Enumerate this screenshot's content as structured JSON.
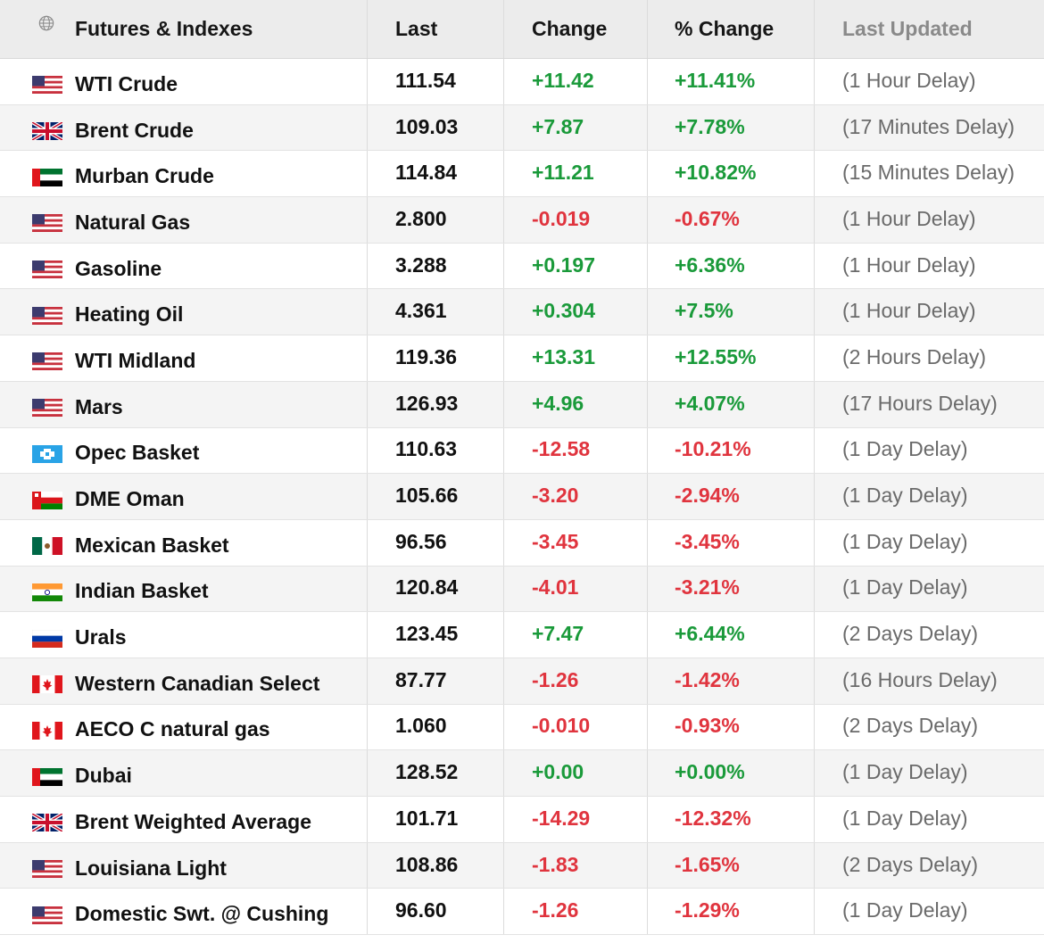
{
  "header": {
    "name": "Futures & Indexes",
    "last": "Last",
    "change": "Change",
    "pct_change": "% Change",
    "updated": "Last Updated"
  },
  "colors": {
    "positive": "#1a9a3a",
    "negative": "#e0343e"
  },
  "rows": [
    {
      "flag": "us",
      "name": "WTI Crude",
      "last": "111.54",
      "change": "+11.42",
      "pct": "+11.41%",
      "updated": "(1 Hour Delay)"
    },
    {
      "flag": "uk",
      "name": "Brent Crude",
      "last": "109.03",
      "change": "+7.87",
      "pct": "+7.78%",
      "updated": "(17 Minutes Delay)"
    },
    {
      "flag": "uae",
      "name": "Murban Crude",
      "last": "114.84",
      "change": "+11.21",
      "pct": "+10.82%",
      "updated": "(15 Minutes Delay)"
    },
    {
      "flag": "us",
      "name": "Natural Gas",
      "last": "2.800",
      "change": "-0.019",
      "pct": "-0.67%",
      "updated": "(1 Hour Delay)"
    },
    {
      "flag": "us",
      "name": "Gasoline",
      "last": "3.288",
      "change": "+0.197",
      "pct": "+6.36%",
      "updated": "(1 Hour Delay)"
    },
    {
      "flag": "us",
      "name": "Heating Oil",
      "last": "4.361",
      "change": "+0.304",
      "pct": "+7.5%",
      "updated": "(1 Hour Delay)"
    },
    {
      "flag": "us",
      "name": "WTI Midland",
      "last": "119.36",
      "change": "+13.31",
      "pct": "+12.55%",
      "updated": "(2 Hours Delay)"
    },
    {
      "flag": "us",
      "name": "Mars",
      "last": "126.93",
      "change": "+4.96",
      "pct": "+4.07%",
      "updated": "(17 Hours Delay)"
    },
    {
      "flag": "opec",
      "name": "Opec Basket",
      "last": "110.63",
      "change": "-12.58",
      "pct": "-10.21%",
      "updated": "(1 Day Delay)"
    },
    {
      "flag": "oman",
      "name": "DME Oman",
      "last": "105.66",
      "change": "-3.20",
      "pct": "-2.94%",
      "updated": "(1 Day Delay)"
    },
    {
      "flag": "mexico",
      "name": "Mexican Basket",
      "last": "96.56",
      "change": "-3.45",
      "pct": "-3.45%",
      "updated": "(1 Day Delay)"
    },
    {
      "flag": "india",
      "name": "Indian Basket",
      "last": "120.84",
      "change": "-4.01",
      "pct": "-3.21%",
      "updated": "(1 Day Delay)"
    },
    {
      "flag": "russia",
      "name": "Urals",
      "last": "123.45",
      "change": "+7.47",
      "pct": "+6.44%",
      "updated": "(2 Days Delay)"
    },
    {
      "flag": "canada",
      "name": "Western Canadian Select",
      "last": "87.77",
      "change": "-1.26",
      "pct": "-1.42%",
      "updated": "(16 Hours Delay)"
    },
    {
      "flag": "canada",
      "name": "AECO C natural gas",
      "last": "1.060",
      "change": "-0.010",
      "pct": "-0.93%",
      "updated": "(2 Days Delay)"
    },
    {
      "flag": "uae",
      "name": "Dubai",
      "last": "128.52",
      "change": "+0.00",
      "pct": "+0.00%",
      "updated": "(1 Day Delay)"
    },
    {
      "flag": "uk",
      "name": "Brent Weighted Average",
      "last": "101.71",
      "change": "-14.29",
      "pct": "-12.32%",
      "updated": "(1 Day Delay)"
    },
    {
      "flag": "us",
      "name": "Louisiana Light",
      "last": "108.86",
      "change": "-1.83",
      "pct": "-1.65%",
      "updated": "(2 Days Delay)"
    },
    {
      "flag": "us",
      "name": "Domestic Swt. @ Cushing",
      "last": "96.60",
      "change": "-1.26",
      "pct": "-1.29%",
      "updated": "(1 Day Delay)"
    }
  ]
}
